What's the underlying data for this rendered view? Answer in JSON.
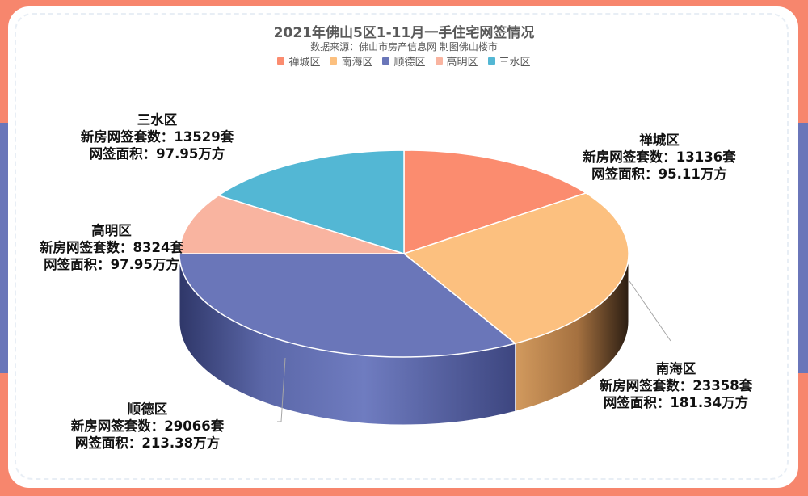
{
  "chart_data": {
    "type": "pie",
    "title": "2021年佛山5区1-11月一手住宅网签情况",
    "subtitle": "数据来源：佛山市房产信息网 制图佛山楼市",
    "legend_position": "top",
    "categories": [
      "禅城区",
      "南海区",
      "顺德区",
      "高明区",
      "三水区"
    ],
    "values": [
      13136,
      23358,
      29066,
      8324,
      13529
    ],
    "colors": [
      "#fb8c6f",
      "#fcc07f",
      "#6a76b9",
      "#f9b4a0",
      "#53b7d4"
    ],
    "labels": [
      {
        "name": "禅城区",
        "line1": "新房网签套数：13136套",
        "line2": "网签面积：95.11万方"
      },
      {
        "name": "南海区",
        "line1": "新房网签套数：23358套",
        "line2": "网签面积：181.34万方"
      },
      {
        "name": "顺德区",
        "line1": "新房网签套数：29066套",
        "line2": "网签面积：213.38万方"
      },
      {
        "name": "高明区",
        "line1": "新房网签套数：8324套",
        "line2": "网签面积：97.95万方"
      },
      {
        "name": "三水区",
        "line1": "新房网签套数：13529套",
        "line2": "网签面积：97.95万方"
      }
    ]
  }
}
